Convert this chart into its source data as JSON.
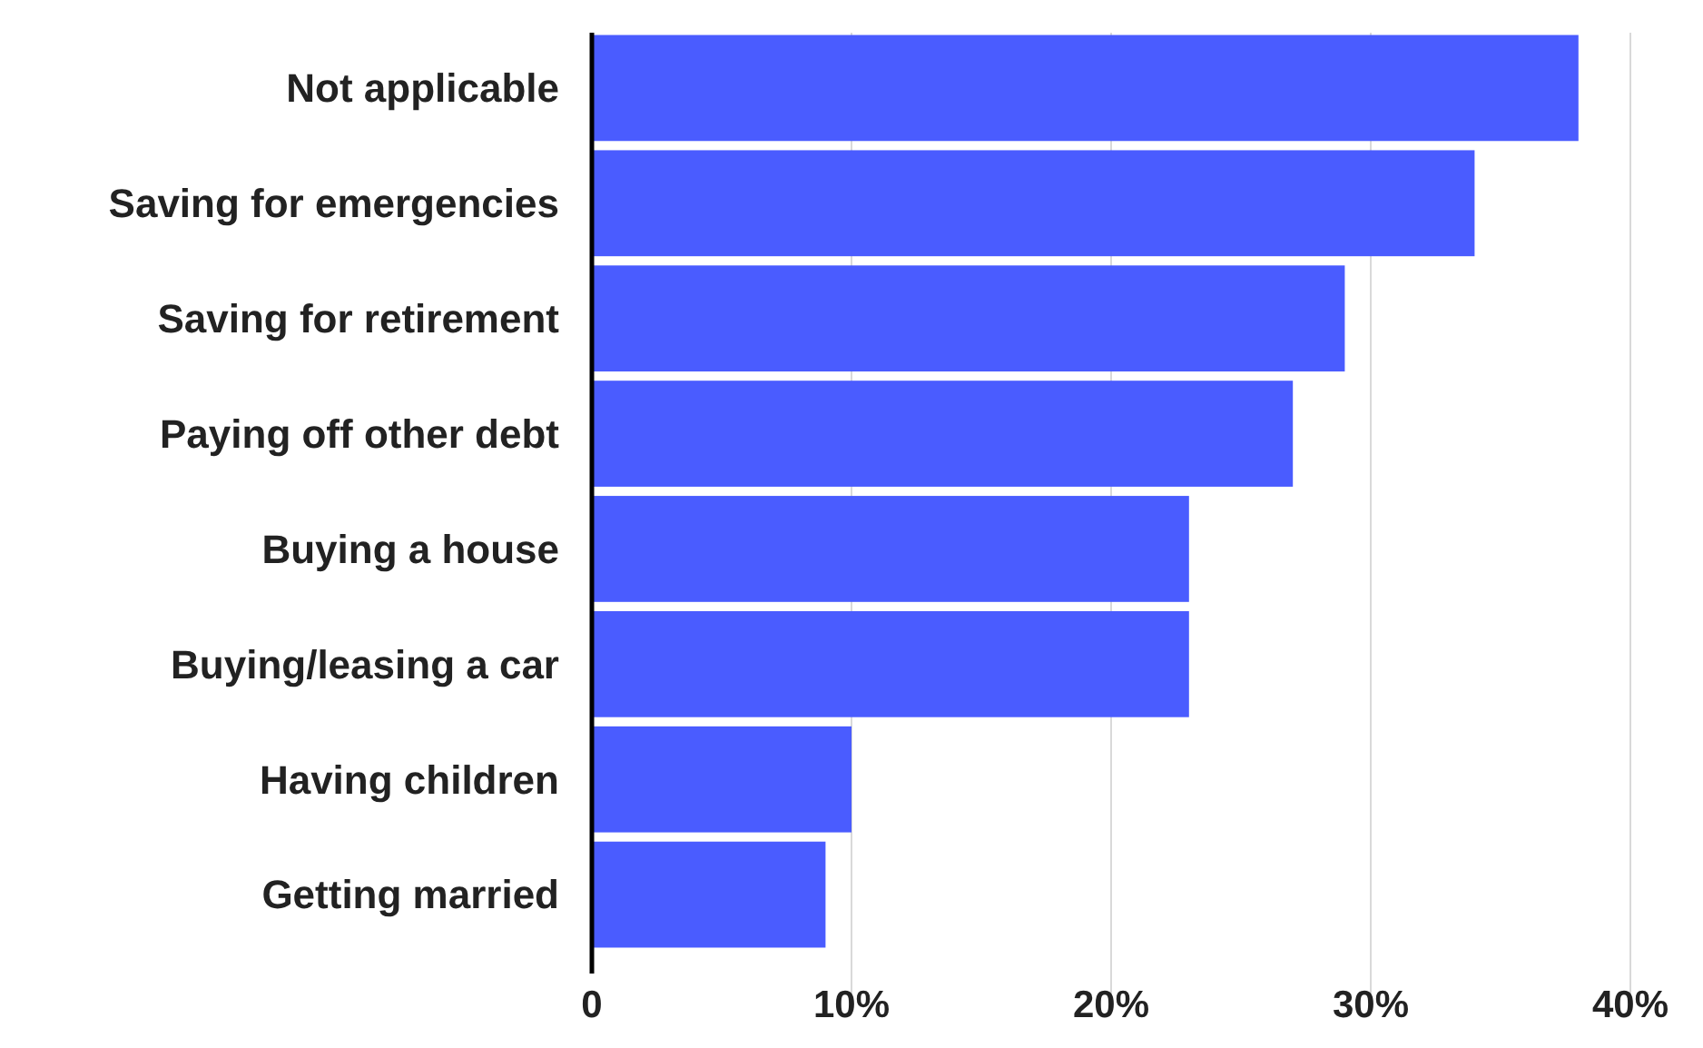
{
  "chart_data": {
    "type": "bar",
    "orientation": "horizontal",
    "categories": [
      "Not applicable",
      "Saving for emergencies",
      "Saving for retirement",
      "Paying off other debt",
      "Buying a house",
      "Buying/leasing a car",
      "Having children",
      "Getting married"
    ],
    "values": [
      38,
      34,
      29,
      27,
      23,
      23,
      10,
      9
    ],
    "color": "#4a5cff",
    "xlim": [
      0,
      40
    ],
    "xticks": [
      0,
      {
        "value": 10,
        "label": "10%"
      },
      {
        "value": 20,
        "label": "20%"
      },
      {
        "value": 30,
        "label": "30%"
      },
      {
        "value": 40,
        "label": "40%"
      }
    ],
    "grid": "x"
  }
}
